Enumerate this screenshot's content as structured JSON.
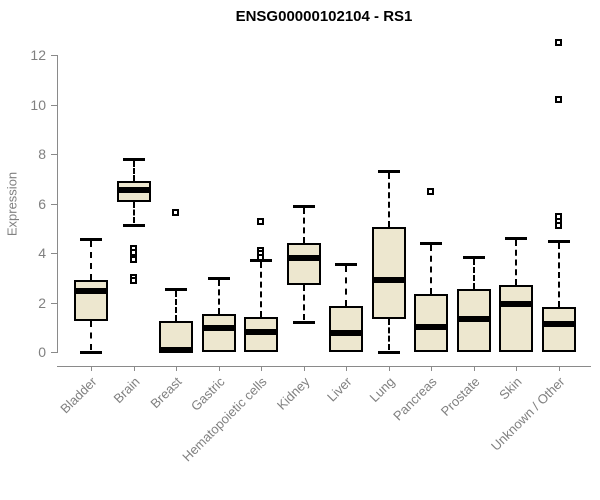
{
  "title": "ENSG00000102104 - RS1",
  "colors": {
    "background": "#ffffff",
    "box_fill": "#EDE7CF",
    "box_border": "#000000",
    "median": "#000000",
    "whisker": "#000000",
    "axis": "#8a8a8a",
    "tick_text": "#808080",
    "title_text": "#000000"
  },
  "chart_data": {
    "type": "boxplot",
    "title": "ENSG00000102104 - RS1",
    "xlabel": "",
    "ylabel": "Expression",
    "ylim": [
      0,
      12
    ],
    "yticks": [
      0,
      2,
      4,
      6,
      8,
      10,
      12
    ],
    "grid": false,
    "legend": "none",
    "categories": [
      "Bladder",
      "Brain",
      "Breast",
      "Gastric",
      "Hematopoietic cells",
      "Kidney",
      "Liver",
      "Lung",
      "Pancreas",
      "Prostate",
      "Skin",
      "Unknown / Other"
    ],
    "boxes": [
      {
        "name": "Bladder",
        "whisker_low": 0,
        "q1": 1.25,
        "median": 2.45,
        "q3": 2.9,
        "whisker_high": 4.55,
        "outliers": []
      },
      {
        "name": "Brain",
        "whisker_low": 5.15,
        "q1": 6.05,
        "median": 6.55,
        "q3": 6.9,
        "whisker_high": 7.8,
        "outliers": [
          4.15,
          4.0,
          3.7,
          3.0,
          2.85
        ]
      },
      {
        "name": "Breast",
        "whisker_low": 0,
        "q1": 0,
        "median": 0.1,
        "q3": 1.25,
        "whisker_high": 2.55,
        "outliers": [
          5.6
        ]
      },
      {
        "name": "Gastric",
        "whisker_low": 0,
        "q1": 0,
        "median": 0.95,
        "q3": 1.55,
        "whisker_high": 3.0,
        "outliers": []
      },
      {
        "name": "Hematopoietic cells",
        "whisker_low": 0,
        "q1": 0,
        "median": 0.8,
        "q3": 1.4,
        "whisker_high": 3.7,
        "outliers": [
          5.25,
          4.1,
          3.95,
          3.8
        ]
      },
      {
        "name": "Kidney",
        "whisker_low": 1.2,
        "q1": 2.7,
        "median": 3.8,
        "q3": 4.4,
        "whisker_high": 5.9,
        "outliers": []
      },
      {
        "name": "Liver",
        "whisker_low": 0,
        "q1": 0,
        "median": 0.75,
        "q3": 1.85,
        "whisker_high": 3.55,
        "outliers": []
      },
      {
        "name": "Lung",
        "whisker_low": 0,
        "q1": 1.35,
        "median": 2.9,
        "q3": 5.05,
        "whisker_high": 7.3,
        "outliers": []
      },
      {
        "name": "Pancreas",
        "whisker_low": 0,
        "q1": 0,
        "median": 1.0,
        "q3": 2.35,
        "whisker_high": 4.4,
        "outliers": [
          6.45
        ]
      },
      {
        "name": "Prostate",
        "whisker_low": 0,
        "q1": 0,
        "median": 1.35,
        "q3": 2.55,
        "whisker_high": 3.85,
        "outliers": []
      },
      {
        "name": "Skin",
        "whisker_low": 0,
        "q1": 0,
        "median": 1.95,
        "q3": 2.7,
        "whisker_high": 4.6,
        "outliers": []
      },
      {
        "name": "Unknown / Other",
        "whisker_low": 0,
        "q1": 0,
        "median": 1.15,
        "q3": 1.8,
        "whisker_high": 4.5,
        "outliers": [
          12.5,
          10.2,
          5.45,
          5.25,
          5.1
        ]
      }
    ]
  }
}
